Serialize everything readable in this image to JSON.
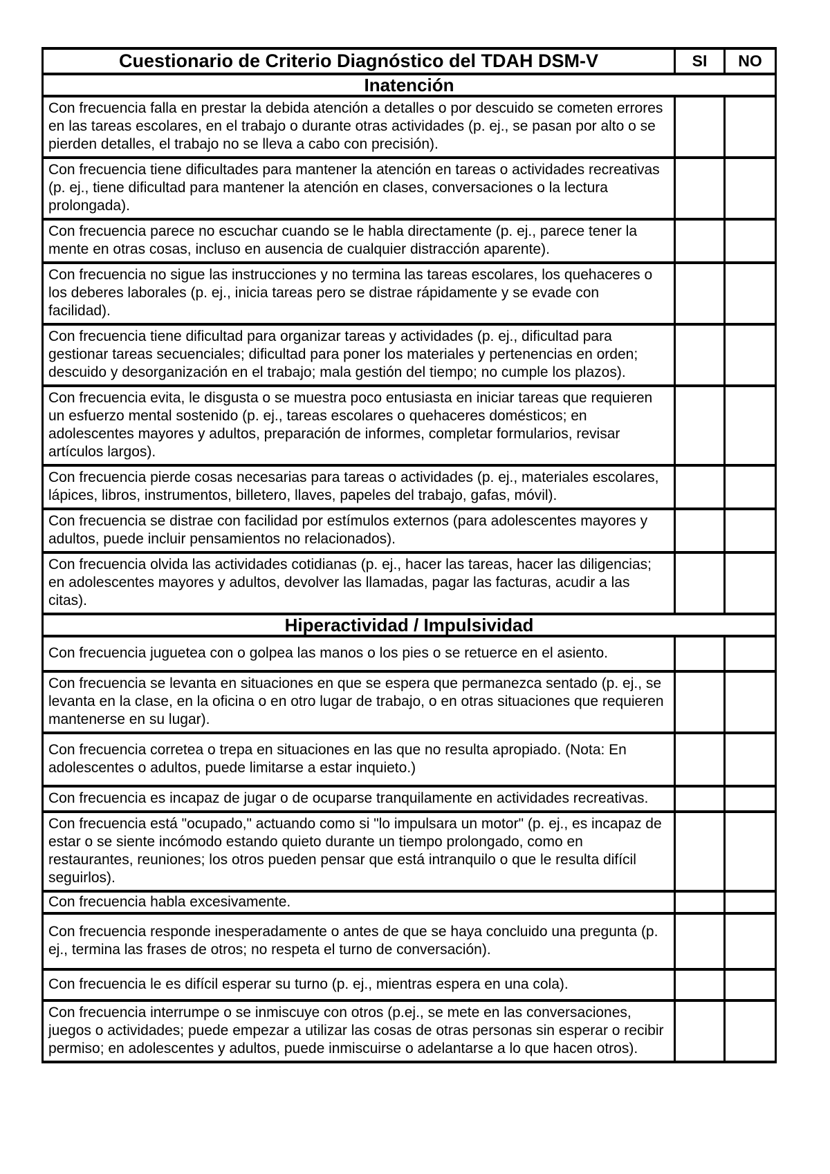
{
  "document": {
    "title": "Cuestionario de Criterio Diagnóstico del TDAH DSM-V",
    "columns": {
      "yes": "SI",
      "no": "NO"
    },
    "sections": [
      {
        "heading": "Inatención",
        "items": [
          "Con frecuencia falla en prestar la debida atención a detalles o por descuido se cometen errores en las tareas escolares, en el trabajo o durante otras actividades (p. ej., se pasan por alto o se pierden detalles, el trabajo no se lleva a cabo con precisión).",
          "Con frecuencia tiene dificultades para mantener la atención en tareas o actividades recreativas (p. ej., tiene dificultad para mantener la atención en clases, conversaciones o la lectura prolongada).",
          "Con frecuencia parece no escuchar cuando se le habla directamente (p. ej., parece tener la mente en otras cosas, incluso en ausencia de cualquier distracción aparente).",
          "Con frecuencia no sigue las instrucciones y no termina las tareas escolares, los quehaceres o los deberes laborales (p. ej., inicia tareas pero se distrae rápidamente y se evade con facilidad).",
          "Con frecuencia tiene dificultad para organizar tareas y actividades (p. ej., dificultad para gestionar tareas secuenciales; dificultad para poner los materiales y pertenencias en orden; descuido y desorganización en el trabajo; mala gestión del tiempo; no cumple los plazos).",
          "Con frecuencia evita, le disgusta o se muestra poco entusiasta en iniciar tareas que requieren un esfuerzo mental sostenido (p. ej., tareas escolares o quehaceres domésticos; en adolescentes mayores y adultos, preparación de informes, completar formularios, revisar artículos largos).",
          "Con frecuencia pierde cosas necesarias para tareas o actividades (p. ej., materiales escolares, lápices, libros, instrumentos, billetero, llaves, papeles del trabajo, gafas, móvil).",
          "Con frecuencia se distrae con facilidad por estímulos externos (para adolescentes mayores y adultos, puede incluir pensamientos no relacionados).",
          "Con frecuencia olvida las actividades cotidianas (p. ej., hacer las tareas, hacer las diligencias; en adolescentes mayores y adultos, devolver las llamadas, pagar las facturas, acudir a las citas)."
        ]
      },
      {
        "heading": "Hiperactividad / Impulsividad",
        "items": [
          "Con frecuencia juguetea con o golpea las manos o los pies o se retuerce en el asiento.",
          "Con frecuencia se levanta en situaciones en que se espera que permanezca sentado (p. ej., se levanta en la clase, en la oficina o en otro lugar de trabajo, o en otras situaciones que requieren mantenerse en su lugar).",
          "Con frecuencia corretea o trepa en situaciones en las que no resulta apropiado. (Nota: En adolescentes o adultos, puede limitarse a estar inquieto.)",
          "Con frecuencia es incapaz de jugar o de ocuparse tranquilamente en actividades recreativas.",
          "Con frecuencia está \"ocupado,\" actuando como si \"lo impulsara un motor\" (p. ej., es incapaz de estar o se siente incómodo estando quieto durante un tiempo prolongado, como en restaurantes, reuniones; los otros pueden pensar que está intranquilo o que le resulta difícil seguirlos).",
          "Con frecuencia habla excesivamente.",
          "Con frecuencia responde inesperadamente o antes de que se haya concluido una pregunta (p. ej., termina las frases de otros; no respeta el turno de conversación).",
          "Con frecuencia le es difícil esperar su turno (p. ej., mientras espera en una cola).",
          "Con frecuencia interrumpe o se inmiscuye con otros (p.ej., se mete en las conversaciones, juegos o actividades; puede empezar a utilizar las cosas de otras personas sin esperar o recibir permiso; en adolescentes y adultos, puede inmiscuirse o adelantarse a lo que hacen otros)."
        ]
      }
    ]
  }
}
